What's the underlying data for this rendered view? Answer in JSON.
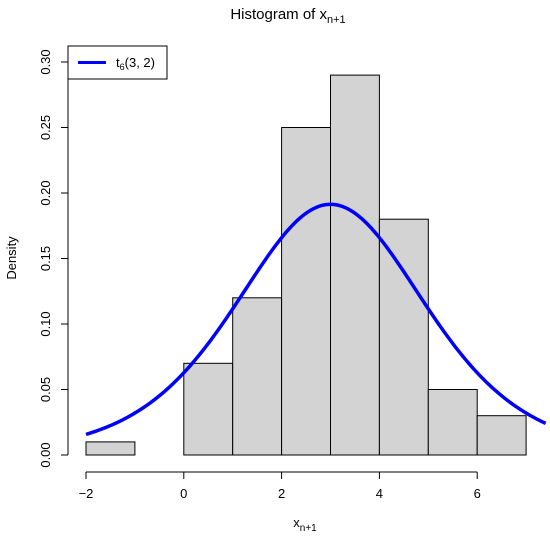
{
  "chart_data": {
    "type": "bar",
    "title_main": "Histogram of x",
    "title_sub": "n+1",
    "xlabel_main": "x",
    "xlabel_sub": "n+1",
    "ylabel": "Density",
    "bins": [
      {
        "x0": -2,
        "x1": -1,
        "density": 0.01
      },
      {
        "x0": -1,
        "x1": 0,
        "density": 0.0
      },
      {
        "x0": 0,
        "x1": 1,
        "density": 0.07
      },
      {
        "x0": 1,
        "x1": 2,
        "density": 0.12
      },
      {
        "x0": 2,
        "x1": 3,
        "density": 0.25
      },
      {
        "x0": 3,
        "x1": 4,
        "density": 0.29
      },
      {
        "x0": 4,
        "x1": 5,
        "density": 0.18
      },
      {
        "x0": 5,
        "x1": 6,
        "density": 0.05
      },
      {
        "x0": 6,
        "x1": 7,
        "density": 0.03
      }
    ],
    "xlim": [
      -2,
      7.4
    ],
    "ylim": [
      0,
      0.3
    ],
    "x_ticks": [
      -2,
      0,
      2,
      4,
      6
    ],
    "x_tick_labels": [
      "−2",
      "0",
      "2",
      "4",
      "6"
    ],
    "y_ticks": [
      0.0,
      0.05,
      0.1,
      0.15,
      0.2,
      0.25,
      0.3
    ],
    "y_tick_labels": [
      "0.00",
      "0.05",
      "0.10",
      "0.15",
      "0.20",
      "0.25",
      "0.30"
    ],
    "density_curve": {
      "df": 6,
      "location": 3,
      "scale": 2,
      "color": "#0000ff"
    },
    "legend": {
      "position": "top-left",
      "label_main": "t",
      "label_sub": "6",
      "label_rest": "(3, 2)"
    },
    "bar_fill": "#d3d3d3",
    "bar_stroke": "#000000"
  }
}
